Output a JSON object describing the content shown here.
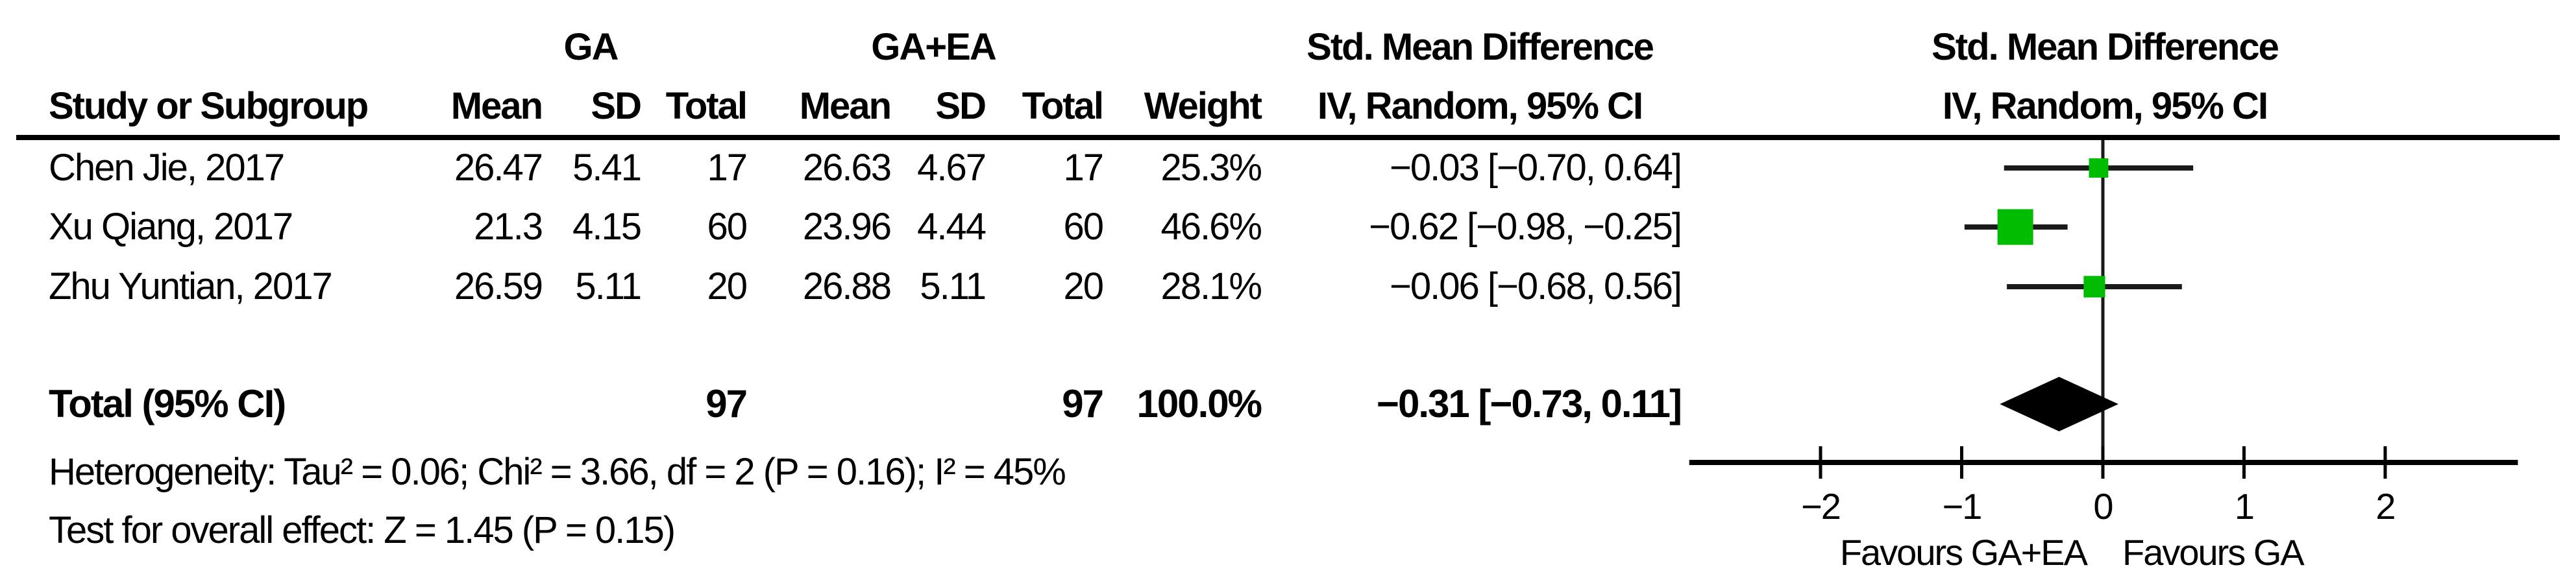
{
  "table": {
    "group_headers": {
      "ga": "GA",
      "gaea": "GA+EA",
      "smd_stat": "Std. Mean Difference",
      "smd_plot": "Std. Mean Difference"
    },
    "col_headers": {
      "study": "Study or Subgroup",
      "mean1": "Mean",
      "sd1": "SD",
      "total1": "Total",
      "mean2": "Mean",
      "sd2": "SD",
      "total2": "Total",
      "weight": "Weight",
      "iv_stat": "IV, Random, 95% CI",
      "iv_plot": "IV, Random, 95% CI"
    },
    "rows": [
      {
        "study": "Chen Jie, 2017",
        "mean1": "26.47",
        "sd1": "5.41",
        "total1": "17",
        "mean2": "26.63",
        "sd2": "4.67",
        "total2": "17",
        "weight": "25.3%",
        "ci": "−0.03 [−0.70, 0.64]"
      },
      {
        "study": "Xu Qiang, 2017",
        "mean1": "21.3",
        "sd1": "4.15",
        "total1": "60",
        "mean2": "23.96",
        "sd2": "4.44",
        "total2": "60",
        "weight": "46.6%",
        "ci": "−0.62 [−0.98, −0.25]"
      },
      {
        "study": "Zhu Yuntian, 2017",
        "mean1": "26.59",
        "sd1": "5.11",
        "total1": "20",
        "mean2": "26.88",
        "sd2": "5.11",
        "total2": "20",
        "weight": "28.1%",
        "ci": "−0.06 [−0.68, 0.56]"
      }
    ],
    "total_row": {
      "label": "Total (95% CI)",
      "total1": "97",
      "total2": "97",
      "weight": "100.0%",
      "ci": "−0.31 [−0.73, 0.11]"
    },
    "footnotes": {
      "heterogeneity": "Heterogeneity: Tau² = 0.06; Chi² = 3.66, df = 2 (P = 0.16); I² = 45%",
      "overall_effect": "Test for overall effect: Z = 1.45 (P = 0.15)"
    }
  },
  "chart_data": {
    "type": "forest",
    "effect_measure": "Std. Mean Difference",
    "method": "IV, Random, 95% CI",
    "studies": [
      {
        "name": "Chen Jie, 2017",
        "est": -0.03,
        "lo": -0.7,
        "hi": 0.64,
        "weight": 25.3
      },
      {
        "name": "Xu Qiang, 2017",
        "est": -0.62,
        "lo": -0.98,
        "hi": -0.25,
        "weight": 46.6
      },
      {
        "name": "Zhu Yuntian, 2017",
        "est": -0.06,
        "lo": -0.68,
        "hi": 0.56,
        "weight": 28.1
      }
    ],
    "total": {
      "est": -0.31,
      "lo": -0.73,
      "hi": 0.11
    },
    "axis": {
      "ticks": [
        -2,
        -1,
        0,
        1,
        2
      ],
      "xlim": [
        -2.93,
        2.94
      ]
    },
    "xlabel_left": "Favours GA+EA",
    "xlabel_right": "Favours GA",
    "marker_color": "#00BC00",
    "line_color": "#1a1a1a",
    "diamond_color": "#000000"
  }
}
